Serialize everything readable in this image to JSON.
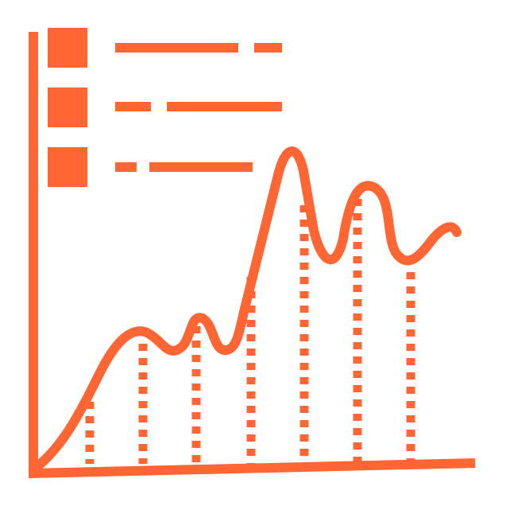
{
  "icon": {
    "name": "line-chart-with-legend-icon",
    "colors": {
      "stroke": "#FF6633",
      "background": "#FFFFFF"
    },
    "legend": [
      {
        "swatch": "square",
        "line_style": "solid-dash"
      },
      {
        "swatch": "square",
        "line_style": "dash-solid"
      },
      {
        "swatch": "square",
        "line_style": "dash-solid"
      }
    ],
    "drop_lines": 7,
    "drop_line_style": "dotted"
  }
}
